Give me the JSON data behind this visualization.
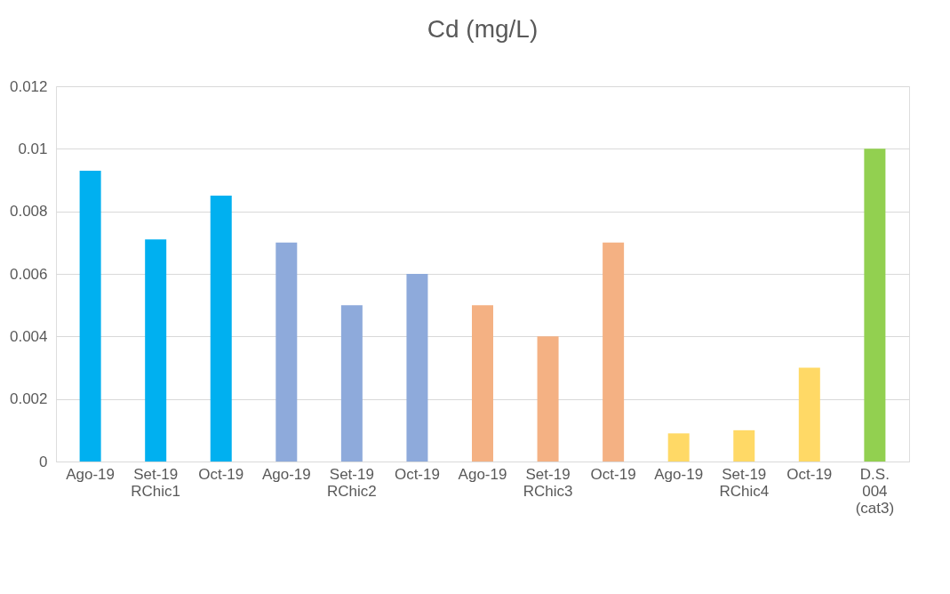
{
  "chart_data": {
    "type": "bar",
    "title": "Cd (mg/L)",
    "categories": [
      "Ago-19",
      "Set-19",
      "Oct-19",
      "Ago-19",
      "Set-19",
      "Oct-19",
      "Ago-19",
      "Set-19",
      "Oct-19",
      "Ago-19",
      "Set-19",
      "Oct-19",
      "D.S. 004 (cat3)"
    ],
    "values": [
      0.0093,
      0.0071,
      0.0085,
      0.007,
      0.005,
      0.006,
      0.005,
      0.004,
      0.007,
      0.0009,
      0.001,
      0.003,
      0.01
    ],
    "colors": [
      "#00b0f0",
      "#00b0f0",
      "#00b0f0",
      "#8eaadb",
      "#8eaadb",
      "#8eaadb",
      "#f4b183",
      "#f4b183",
      "#f4b183",
      "#ffd966",
      "#ffd966",
      "#ffd966",
      "#92d050"
    ],
    "annotations": [
      "RChic1",
      "RChic2",
      "RChic3",
      "RChic4"
    ],
    "ylim": [
      0,
      0.012
    ],
    "yticks": [
      0,
      0.002,
      0.004,
      0.006,
      0.008,
      0.01,
      0.012
    ],
    "grid": "y"
  }
}
